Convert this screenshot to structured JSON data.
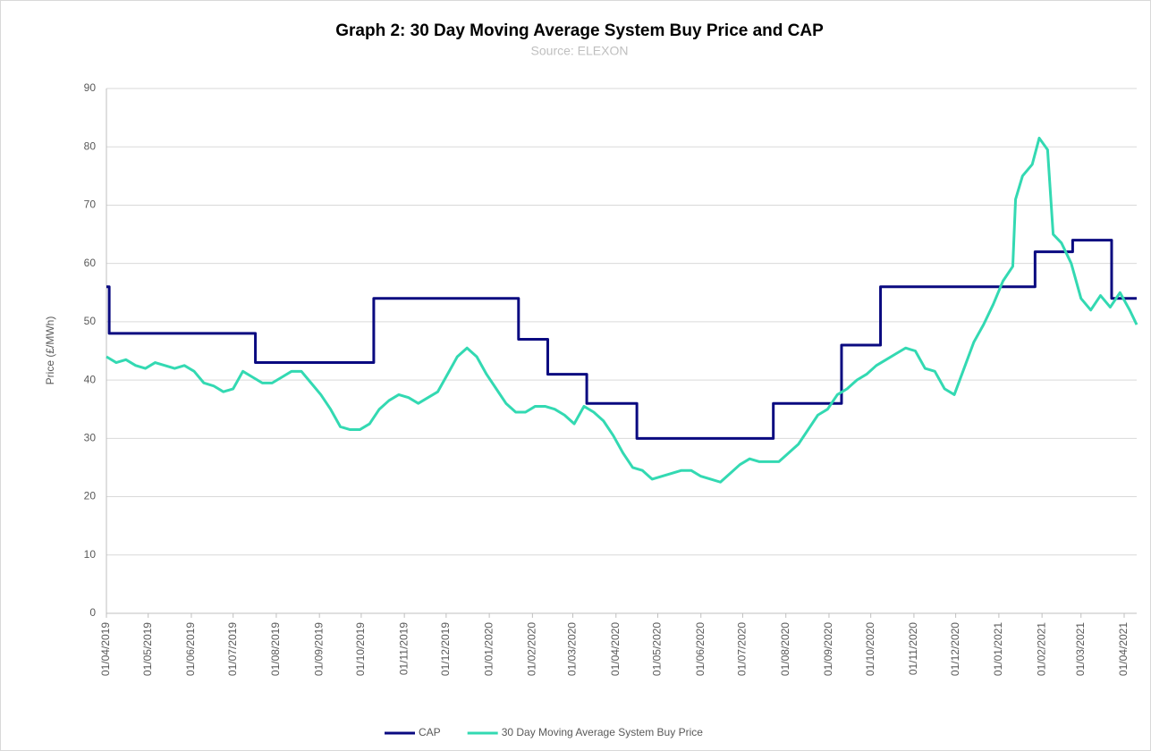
{
  "chart_data": {
    "type": "line",
    "title": "Graph 2: 30 Day Moving Average System Buy Price and CAP",
    "subtitle": "Source: ELEXON",
    "y_label": "Price (£/MWh)",
    "xlim": [
      "2019-04-01",
      "2021-04-10"
    ],
    "ylim": [
      0,
      90
    ],
    "yticks": [
      0,
      10,
      20,
      30,
      40,
      50,
      60,
      70,
      80,
      90
    ],
    "xticks": [
      {
        "value": "2019-04-01",
        "label": "01/04/2019"
      },
      {
        "value": "2019-05-01",
        "label": "01/05/2019"
      },
      {
        "value": "2019-06-01",
        "label": "01/06/2019"
      },
      {
        "value": "2019-07-01",
        "label": "01/07/2019"
      },
      {
        "value": "2019-08-01",
        "label": "01/08/2019"
      },
      {
        "value": "2019-09-01",
        "label": "01/09/2019"
      },
      {
        "value": "2019-10-01",
        "label": "01/10/2019"
      },
      {
        "value": "2019-11-01",
        "label": "01/11/2019"
      },
      {
        "value": "2019-12-01",
        "label": "01/12/2019"
      },
      {
        "value": "2020-01-01",
        "label": "01/01/2020"
      },
      {
        "value": "2020-02-01",
        "label": "01/02/2020"
      },
      {
        "value": "2020-03-01",
        "label": "01/03/2020"
      },
      {
        "value": "2020-04-01",
        "label": "01/04/2020"
      },
      {
        "value": "2020-05-01",
        "label": "01/05/2020"
      },
      {
        "value": "2020-06-01",
        "label": "01/06/2020"
      },
      {
        "value": "2020-07-01",
        "label": "01/07/2020"
      },
      {
        "value": "2020-08-01",
        "label": "01/08/2020"
      },
      {
        "value": "2020-09-01",
        "label": "01/09/2020"
      },
      {
        "value": "2020-10-01",
        "label": "01/10/2020"
      },
      {
        "value": "2020-11-01",
        "label": "01/11/2020"
      },
      {
        "value": "2020-12-01",
        "label": "01/12/2020"
      },
      {
        "value": "2021-01-01",
        "label": "01/01/2021"
      },
      {
        "value": "2021-02-01",
        "label": "01/02/2021"
      },
      {
        "value": "2021-03-01",
        "label": "01/03/2021"
      },
      {
        "value": "2021-04-01",
        "label": "01/04/2021"
      }
    ],
    "grid": true,
    "legend": "bottom",
    "series": [
      {
        "name": "CAP",
        "color": "#0a0a80",
        "step": "post",
        "x": [
          "2019-04-01",
          "2019-04-03",
          "2019-07-17",
          "2019-10-10",
          "2020-01-22",
          "2020-02-12",
          "2020-03-11",
          "2020-04-16",
          "2020-07-23",
          "2020-09-10",
          "2020-10-08",
          "2021-01-27",
          "2021-02-23",
          "2021-03-23",
          "2021-04-10"
        ],
        "values": [
          56,
          48,
          43,
          54,
          47,
          41,
          36,
          30,
          36,
          46,
          56,
          62,
          64,
          54,
          54
        ]
      },
      {
        "name": "30 Day Moving Average System Buy Price",
        "color": "#33d9b2",
        "x": [
          "2019-04-01",
          "2019-04-08",
          "2019-04-15",
          "2019-04-22",
          "2019-04-29",
          "2019-05-06",
          "2019-05-13",
          "2019-05-20",
          "2019-05-27",
          "2019-06-03",
          "2019-06-10",
          "2019-06-17",
          "2019-06-24",
          "2019-07-01",
          "2019-07-08",
          "2019-07-15",
          "2019-07-22",
          "2019-07-29",
          "2019-08-05",
          "2019-08-12",
          "2019-08-19",
          "2019-08-26",
          "2019-09-02",
          "2019-09-09",
          "2019-09-16",
          "2019-09-23",
          "2019-09-30",
          "2019-10-07",
          "2019-10-14",
          "2019-10-21",
          "2019-10-28",
          "2019-11-04",
          "2019-11-11",
          "2019-11-18",
          "2019-11-25",
          "2019-12-02",
          "2019-12-09",
          "2019-12-16",
          "2019-12-23",
          "2019-12-30",
          "2020-01-06",
          "2020-01-13",
          "2020-01-20",
          "2020-01-27",
          "2020-02-03",
          "2020-02-10",
          "2020-02-17",
          "2020-02-24",
          "2020-03-02",
          "2020-03-09",
          "2020-03-16",
          "2020-03-23",
          "2020-03-30",
          "2020-04-06",
          "2020-04-13",
          "2020-04-20",
          "2020-04-27",
          "2020-05-04",
          "2020-05-11",
          "2020-05-18",
          "2020-05-25",
          "2020-06-01",
          "2020-06-08",
          "2020-06-15",
          "2020-06-22",
          "2020-06-29",
          "2020-07-06",
          "2020-07-13",
          "2020-07-20",
          "2020-07-27",
          "2020-08-03",
          "2020-08-10",
          "2020-08-17",
          "2020-08-24",
          "2020-08-31",
          "2020-09-07",
          "2020-09-14",
          "2020-09-21",
          "2020-09-28",
          "2020-10-05",
          "2020-10-12",
          "2020-10-19",
          "2020-10-26",
          "2020-11-02",
          "2020-11-09",
          "2020-11-16",
          "2020-11-23",
          "2020-11-30",
          "2020-12-07",
          "2020-12-14",
          "2020-12-21",
          "2020-12-28",
          "2021-01-04",
          "2021-01-11",
          "2021-01-13",
          "2021-01-18",
          "2021-01-25",
          "2021-01-30",
          "2021-02-05",
          "2021-02-09",
          "2021-02-15",
          "2021-02-22",
          "2021-03-01",
          "2021-03-08",
          "2021-03-15",
          "2021-03-22",
          "2021-03-29",
          "2021-04-05",
          "2021-04-10"
        ],
        "values": [
          44,
          43,
          43.5,
          42.5,
          42,
          43,
          42.5,
          42,
          42.5,
          41.5,
          39.5,
          39,
          38,
          38.5,
          41.5,
          40.5,
          39.5,
          39.5,
          40.5,
          41.5,
          41.5,
          39.5,
          37.5,
          35,
          32,
          31.5,
          31.5,
          32.5,
          35,
          36.5,
          37.5,
          37,
          36,
          37,
          38,
          41,
          44,
          45.5,
          44,
          41,
          38.5,
          36,
          34.5,
          34.5,
          35.5,
          35.5,
          35,
          34,
          32.5,
          35.5,
          34.5,
          33,
          30.5,
          27.5,
          25,
          24.5,
          23,
          23.5,
          24,
          24.5,
          24.5,
          23.5,
          23,
          22.5,
          24,
          25.5,
          26.5,
          26,
          26,
          26,
          27.5,
          29,
          31.5,
          34,
          35,
          37.5,
          38.5,
          40,
          41,
          42.5,
          43.5,
          44.5,
          45.5,
          45,
          42,
          41.5,
          38.5,
          37.5,
          42,
          46.5,
          49.5,
          53,
          57,
          59.5,
          71,
          75,
          77,
          81.5,
          79.5,
          65,
          63.5,
          60,
          54,
          52,
          54.5,
          52.5,
          55,
          52,
          49.5
        ]
      }
    ]
  }
}
